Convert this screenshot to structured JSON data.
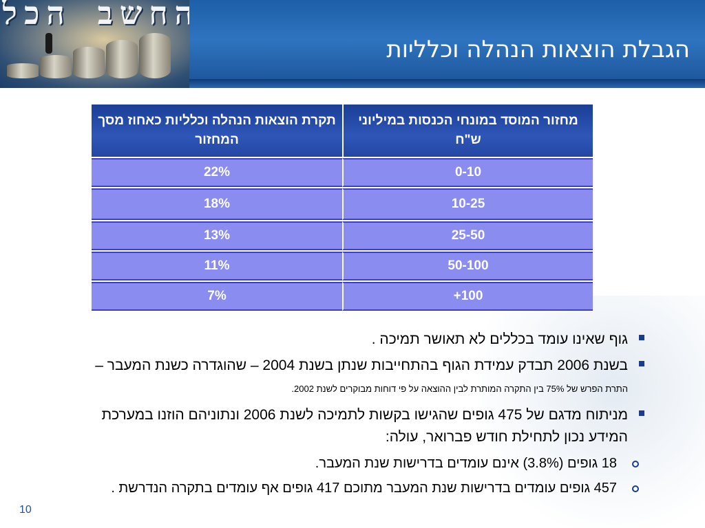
{
  "header": {
    "logo_text": "החשב הכללי",
    "title": "הגבלת הוצאות הנהלה וכלליות"
  },
  "table": {
    "headers": [
      "מחזור המוסד במונחי הכנסות במיליוני ש\"ח",
      "תקרת הוצאות הנהלה וכלליות כאחוז מסך המחזור"
    ],
    "rows": [
      {
        "range": "0-10",
        "rate": "22%"
      },
      {
        "range": "10-25",
        "rate": "18%"
      },
      {
        "range": "25-50",
        "rate": "13%"
      },
      {
        "range": "50-100",
        "rate": "11%"
      },
      {
        "range": "100+",
        "rate": "7%"
      }
    ]
  },
  "bullets": [
    {
      "text": "גוף שאינו עומד בכללים לא תאושר תמיכה ."
    },
    {
      "text": "בשנת 2006 תבדק עמידת הגוף בהתחייבות שנתן בשנת 2004 – שהוגדרה כשנת המעבר –",
      "note": "התרת הפרש של  75% בין התקרה המותרת לבין ההוצאה על פי דוחות מבוקרים לשנת 2002."
    },
    {
      "text": "מניתוח מדגם של 475 גופים שהגישו בקשות לתמיכה לשנת 2006 ונתוניהם הוזנו במערכת המידע נכון לתחילת חודש פברואר, עולה:"
    }
  ],
  "sub_bullets": [
    {
      "text": "18 גופים (3.8%) אינם עומדים בדרישות שנת המעבר."
    },
    {
      "text": "457 גופים עומדים בדרישות שנת המעבר מתוכם 417 גופים אף עומדים בתקרה הנדרשת ."
    }
  ],
  "page_number": "10",
  "colors": {
    "header_blue": "#1d5fa8",
    "table_header": "#2447a3",
    "table_row": "#8a8cf0",
    "bullet_mark": "#1a3c8e"
  }
}
